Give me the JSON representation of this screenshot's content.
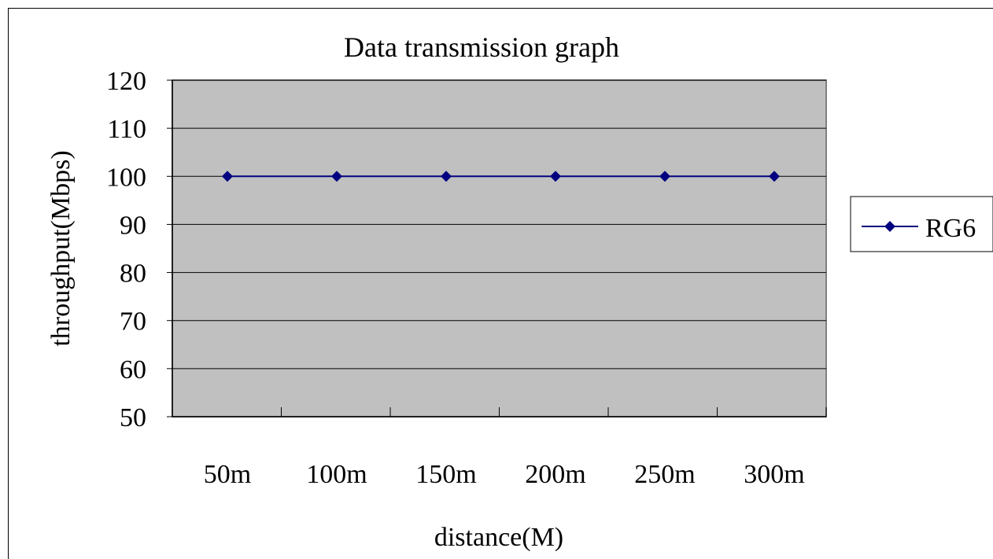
{
  "chart_data": {
    "type": "line",
    "title": "Data transmission graph",
    "xlabel": "distance(M)",
    "ylabel": "throughput(Mbps)",
    "categories": [
      "50m",
      "100m",
      "150m",
      "200m",
      "250m",
      "300m"
    ],
    "ylim": [
      50,
      120
    ],
    "yticks": [
      50,
      60,
      70,
      80,
      90,
      100,
      110,
      120
    ],
    "grid": true,
    "legend": "right",
    "series": [
      {
        "name": "RG6",
        "values": [
          100,
          100,
          100,
          100,
          100,
          100
        ]
      }
    ],
    "colors": {
      "plot_background": "#c0c0c0",
      "series_line": "#000080",
      "gridline": "#000000"
    }
  }
}
